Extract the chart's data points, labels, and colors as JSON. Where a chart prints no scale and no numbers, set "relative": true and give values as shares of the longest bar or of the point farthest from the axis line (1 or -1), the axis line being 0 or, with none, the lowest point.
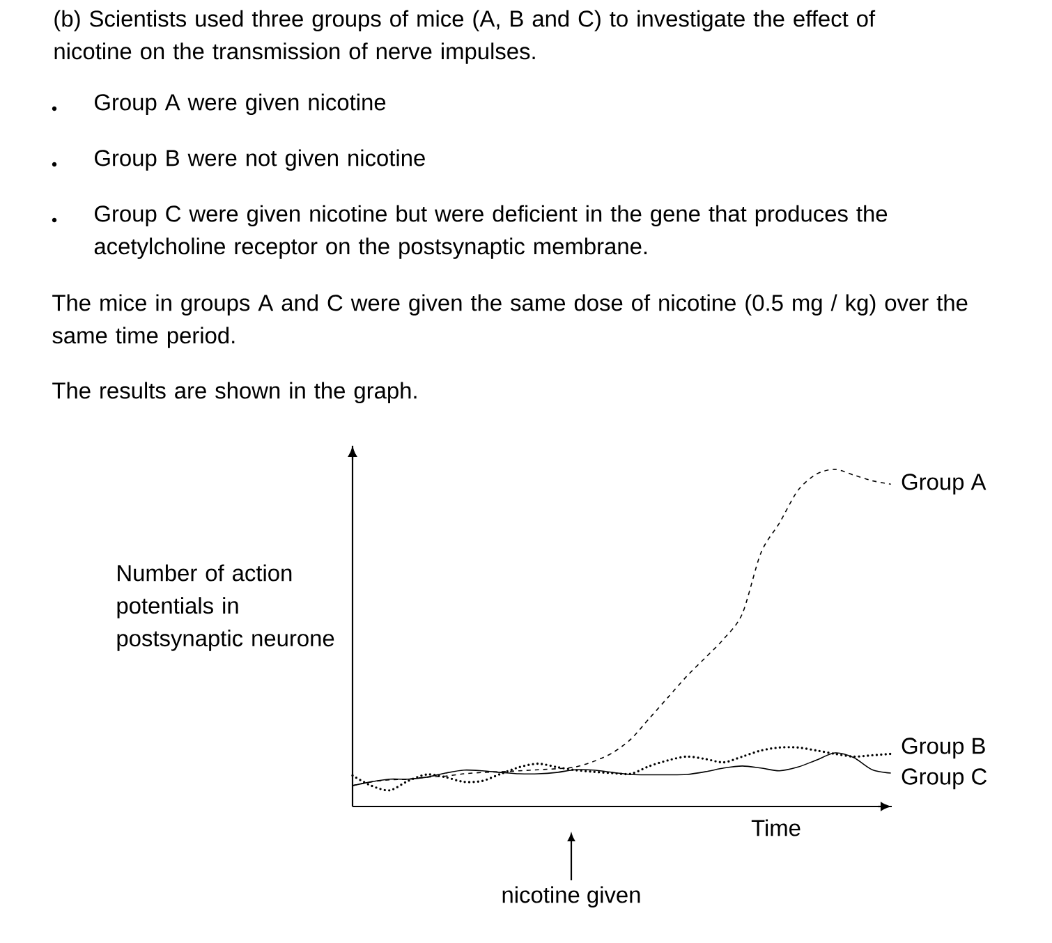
{
  "chart_data": {
    "type": "line",
    "relative": true,
    "title": "(b) Scientists used three groups of mice (A, B and C) to investigate the effect of nicotine on the transmission of nerve impulses.",
    "xlabel": "Time",
    "ylabel": "Number of action potentials in postsynaptic neurone",
    "annotations": [
      "Group A were given nicotine",
      "Group B were not given nicotine",
      "Group C were given nicotine but were deficient in the gene that produces the acetylcholine receptor on the postsynaptic membrane.",
      "The mice in groups A and C were given the same dose of nicotine (0.5 mg / kg) over the same time period.",
      "The results are shown in the graph.",
      "nicotine given"
    ],
    "categories": [
      null,
      null,
      null,
      null,
      null,
      null,
      null,
      null,
      null,
      null,
      null,
      null,
      null,
      null,
      null,
      null,
      null,
      null,
      null,
      null,
      null,
      null,
      null,
      null,
      null,
      null,
      null,
      null,
      null,
      null
    ],
    "series": [
      {
        "name": "Group A",
        "color": "#000000",
        "line_style": "dashed",
        "values": [
          0.062,
          0.073,
          0.079,
          0.081,
          0.087,
          0.09,
          0.097,
          0.101,
          0.103,
          0.106,
          0.109,
          0.112,
          0.117,
          0.134,
          0.159,
          0.2,
          0.262,
          0.324,
          0.386,
          0.441,
          0.497,
          0.572,
          0.752,
          0.841,
          0.938,
          0.986,
          1,
          0.983,
          0.966,
          0.956
        ]
      },
      {
        "name": "Group B",
        "color": "#000000",
        "line_style": "dotted",
        "values": [
          0.092,
          0.062,
          0.048,
          0.076,
          0.095,
          0.087,
          0.073,
          0.076,
          0.097,
          0.117,
          0.127,
          0.117,
          0.108,
          0.103,
          0.099,
          0.097,
          0.12,
          0.137,
          0.148,
          0.141,
          0.131,
          0.148,
          0.166,
          0.175,
          0.175,
          0.166,
          0.156,
          0.148,
          0.152,
          0.156
        ]
      },
      {
        "name": "Group C",
        "color": "#000000",
        "line_style": "solid",
        "values": [
          0.062,
          0.073,
          0.081,
          0.081,
          0.087,
          0.099,
          0.108,
          0.106,
          0.101,
          0.097,
          0.097,
          0.101,
          0.109,
          0.108,
          0.101,
          0.095,
          0.094,
          0.094,
          0.095,
          0.103,
          0.114,
          0.12,
          0.114,
          0.106,
          0.117,
          0.138,
          0.159,
          0.145,
          0.109,
          0.099
        ]
      }
    ]
  }
}
